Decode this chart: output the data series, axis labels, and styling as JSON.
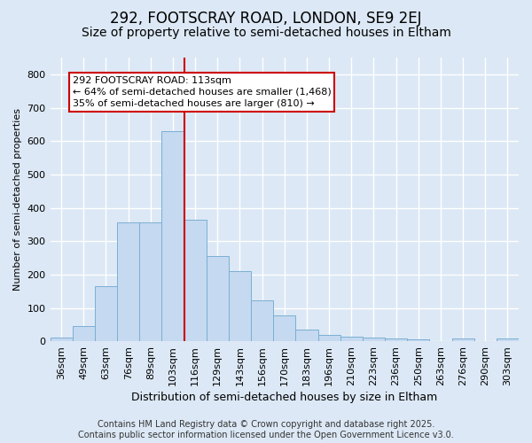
{
  "title1": "292, FOOTSCRAY ROAD, LONDON, SE9 2EJ",
  "title2": "Size of property relative to semi-detached houses in Eltham",
  "xlabel": "Distribution of semi-detached houses by size in Eltham",
  "ylabel": "Number of semi-detached properties",
  "categories": [
    "36sqm",
    "49sqm",
    "63sqm",
    "76sqm",
    "89sqm",
    "103sqm",
    "116sqm",
    "129sqm",
    "143sqm",
    "156sqm",
    "170sqm",
    "183sqm",
    "196sqm",
    "210sqm",
    "223sqm",
    "236sqm",
    "250sqm",
    "263sqm",
    "276sqm",
    "290sqm",
    "303sqm"
  ],
  "values": [
    10,
    45,
    165,
    355,
    355,
    630,
    365,
    255,
    210,
    122,
    78,
    35,
    20,
    13,
    10,
    8,
    5,
    0,
    8,
    0,
    8
  ],
  "bar_color": "#c5d9f0",
  "bar_edge_color": "#7bafd4",
  "vline_x_index": 6,
  "vline_color": "#cc0000",
  "annotation_line1": "292 FOOTSCRAY ROAD: 113sqm",
  "annotation_line2": "← 64% of semi-detached houses are smaller (1,468)",
  "annotation_line3": "35% of semi-detached houses are larger (810) →",
  "annotation_box_color": "#ffffff",
  "annotation_box_edge": "#cc0000",
  "ylim": [
    0,
    850
  ],
  "yticks": [
    0,
    100,
    200,
    300,
    400,
    500,
    600,
    700,
    800
  ],
  "footer1": "Contains HM Land Registry data © Crown copyright and database right 2025.",
  "footer2": "Contains public sector information licensed under the Open Government Licence v3.0.",
  "bg_color": "#dce8f5",
  "plot_bg_color": "#dce8f5",
  "grid_color": "#ffffff",
  "title1_fontsize": 12,
  "title2_fontsize": 10,
  "xlabel_fontsize": 9,
  "ylabel_fontsize": 8,
  "tick_fontsize": 8,
  "annot_fontsize": 8,
  "footer_fontsize": 7
}
